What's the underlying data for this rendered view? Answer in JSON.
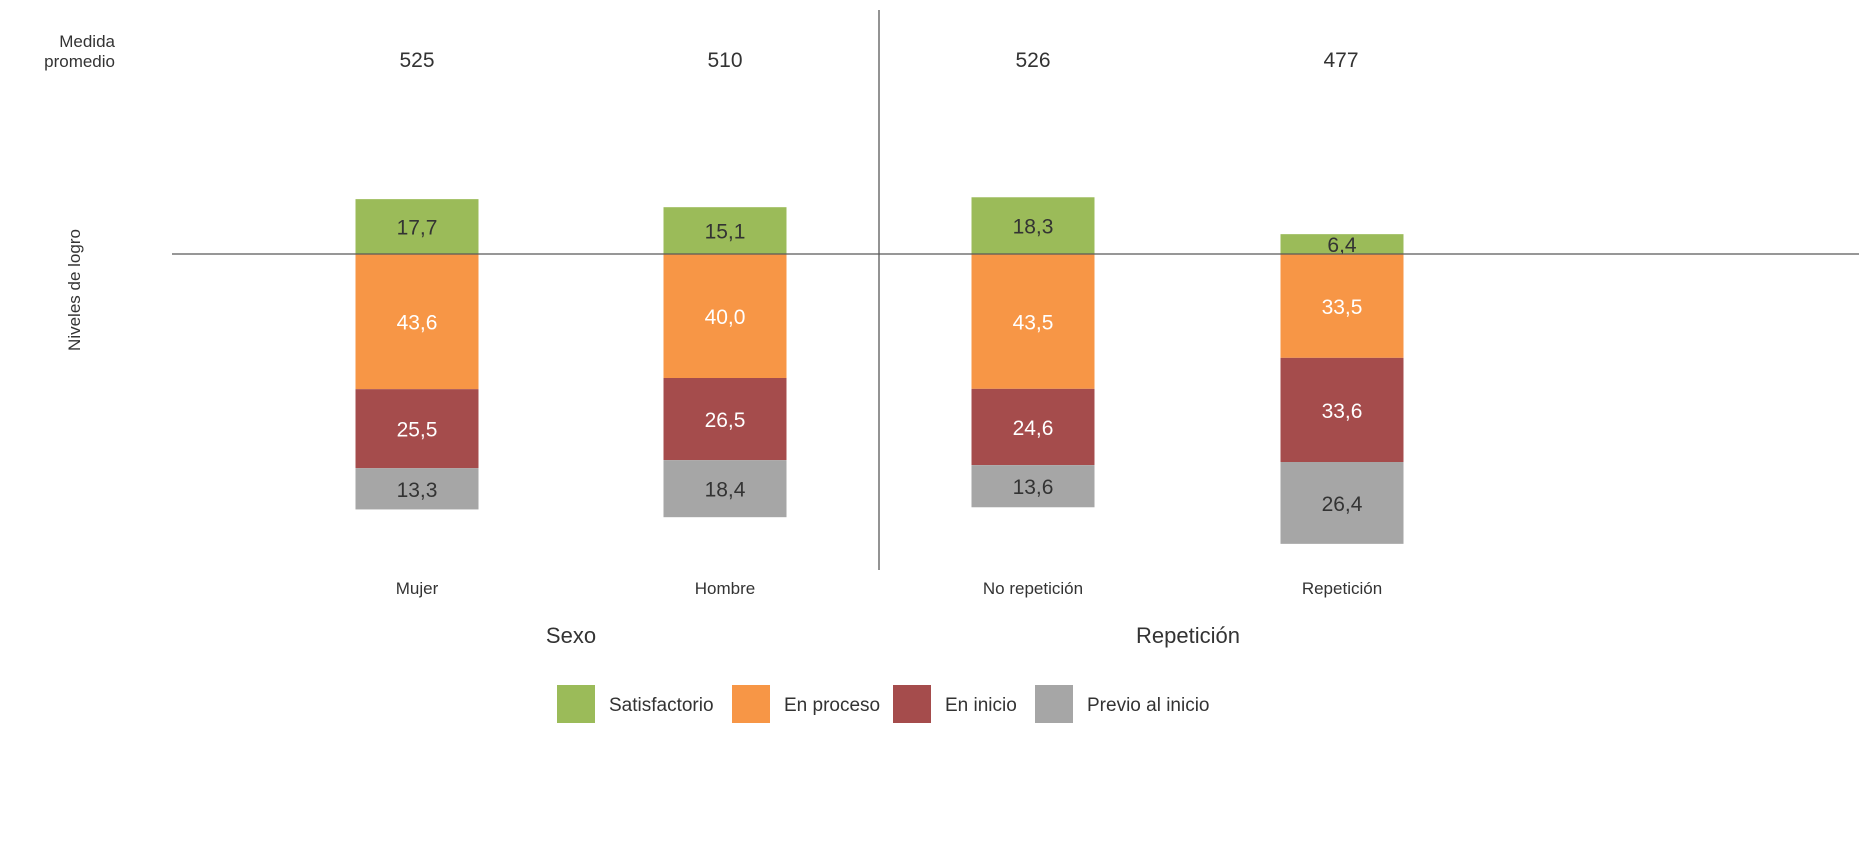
{
  "row_labels": {
    "mean_line1": "Medida",
    "mean_line2": "promedio",
    "levels_axis": "Niveles de logro"
  },
  "colors": {
    "Satisfactorio": "#9bbb59",
    "En proceso": "#f79646",
    "En inicio": "#a54c4c",
    "Previo al inicio": "#a6a6a6",
    "text_on_light": "#333333",
    "text_on_dark": "#ffffff",
    "rule": "#595959"
  },
  "chart_data": {
    "type": "bar",
    "stacking": "diverging",
    "baseline_between": [
      "Satisfactorio",
      "En proceso"
    ],
    "categories": [
      "Mujer",
      "Hombre",
      "No repetición",
      "Repetición"
    ],
    "groups": [
      {
        "label": "Sexo",
        "categories": [
          "Mujer",
          "Hombre"
        ]
      },
      {
        "label": "Repetición",
        "categories": [
          "No repetición",
          "Repetición"
        ]
      }
    ],
    "mean_scores": [
      "525",
      "510",
      "526",
      "477"
    ],
    "series": [
      {
        "name": "Satisfactorio",
        "values": [
          17.7,
          15.1,
          18.3,
          6.4
        ],
        "labels": [
          "17,7",
          "15,1",
          "18,3",
          "6,4"
        ],
        "direction": "up"
      },
      {
        "name": "En proceso",
        "values": [
          43.6,
          40.0,
          43.5,
          33.5
        ],
        "labels": [
          "43,6",
          "40,0",
          "43,5",
          "33,5"
        ],
        "direction": "down"
      },
      {
        "name": "En inicio",
        "values": [
          25.5,
          26.5,
          24.6,
          33.6
        ],
        "labels": [
          "25,5",
          "26,5",
          "24,6",
          "33,6"
        ],
        "direction": "down"
      },
      {
        "name": "Previo al inicio",
        "values": [
          13.3,
          18.4,
          13.6,
          26.4
        ],
        "labels": [
          "13,3",
          "18,4",
          "13,6",
          "26,4"
        ],
        "direction": "down"
      }
    ],
    "legend": {
      "position": "bottom",
      "items": [
        "Satisfactorio",
        "En proceso",
        "En inicio",
        "Previo al inicio"
      ]
    }
  }
}
